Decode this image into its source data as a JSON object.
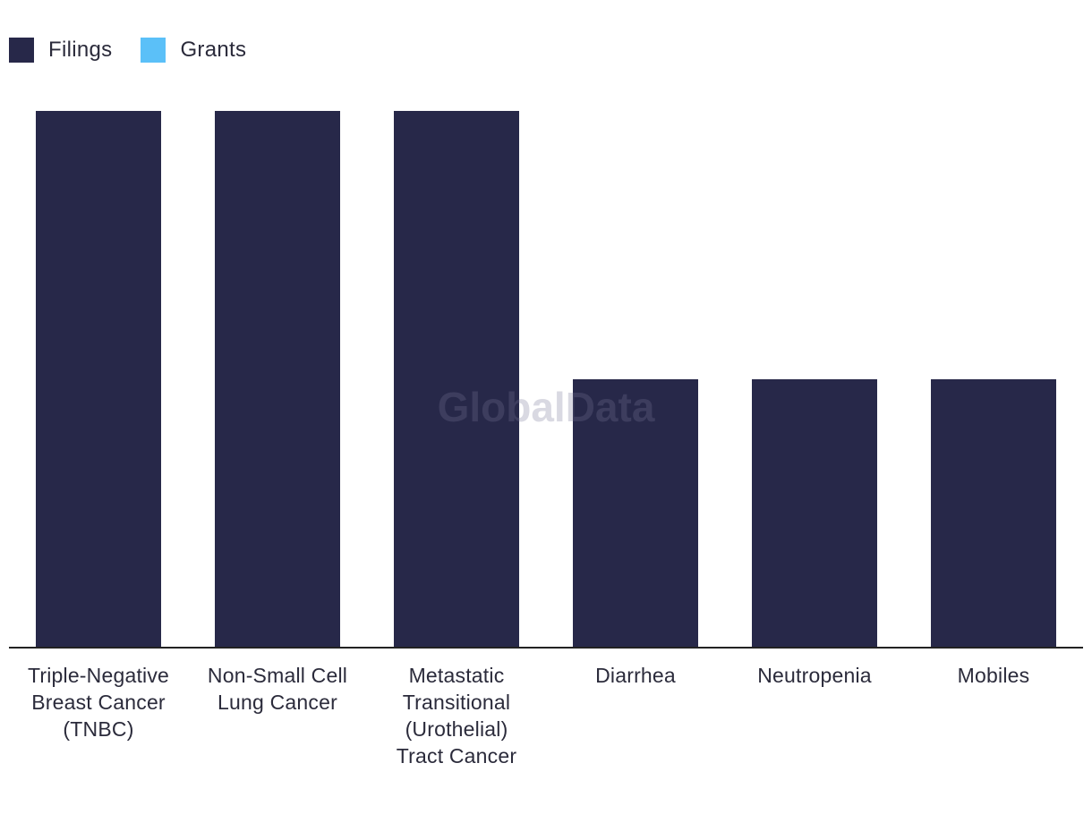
{
  "legend": {
    "items": [
      {
        "label": "Filings",
        "color": "#272849"
      },
      {
        "label": "Grants",
        "color": "#5bc0f8"
      }
    ]
  },
  "watermark": "GlobalData",
  "chart_data": {
    "type": "bar",
    "categories": [
      "Triple-Negative Breast Cancer (TNBC)",
      "Non-Small Cell Lung Cancer",
      "Metastatic Transitional (Urothelial) Tract Cancer",
      "Diarrhea",
      "Neutropenia",
      "Mobiles"
    ],
    "category_labels": [
      "Triple-Negative\nBreast Cancer\n(TNBC)",
      "Non-Small Cell\nLung Cancer",
      "Metastatic\nTransitional\n(Urothelial)\nTract Cancer",
      "Diarrhea",
      "Neutropenia",
      "Mobiles"
    ],
    "series": [
      {
        "name": "Filings",
        "color": "#272849",
        "values": [
          2,
          2,
          2,
          1,
          1,
          1
        ]
      },
      {
        "name": "Grants",
        "color": "#5bc0f8",
        "values": [
          0,
          0,
          0,
          0,
          0,
          0
        ]
      }
    ],
    "ylim": [
      0,
      2
    ],
    "grid": false,
    "legend_position": "top-left",
    "title": "",
    "xlabel": "",
    "ylabel": ""
  }
}
